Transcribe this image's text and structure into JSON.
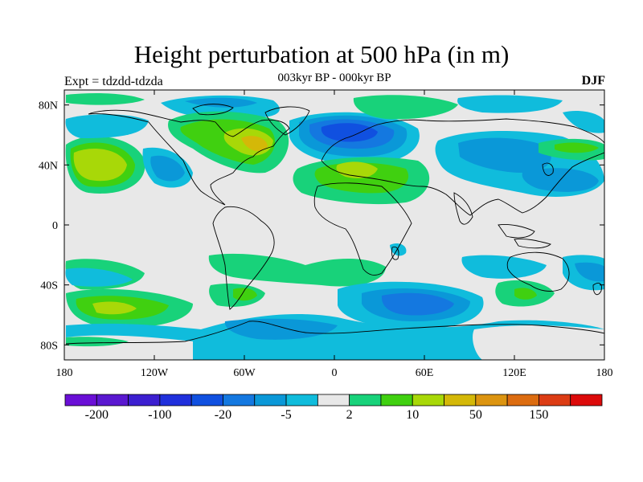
{
  "title": "Height perturbation at 500 hPa (in m)",
  "subtitle": "003kyr BP - 000kyr BP",
  "left_label": "Expt = tdzdd-tdzda",
  "right_label": "DJF",
  "map": {
    "lon_range": [
      -180,
      180
    ],
    "lat_range": [
      -90,
      90
    ],
    "background_color": "#e8e8e8",
    "x_ticks": [
      {
        "lon": -180,
        "label": "180"
      },
      {
        "lon": -120,
        "label": "120W"
      },
      {
        "lon": -60,
        "label": "60W"
      },
      {
        "lon": 0,
        "label": "0"
      },
      {
        "lon": 60,
        "label": "60E"
      },
      {
        "lon": 120,
        "label": "120E"
      },
      {
        "lon": 180,
        "label": "180"
      }
    ],
    "y_ticks": [
      {
        "lat": 80,
        "label": "80N"
      },
      {
        "lat": 40,
        "label": "40N"
      },
      {
        "lat": 0,
        "label": "0"
      },
      {
        "lat": -40,
        "label": "40S"
      },
      {
        "lat": -80,
        "label": "80S"
      }
    ]
  },
  "colorbar": {
    "colors": [
      "#6a0fd6",
      "#5a18d0",
      "#3c1fd0",
      "#2030dc",
      "#1050e0",
      "#1478e0",
      "#0a98d8",
      "#10bcdc",
      "#e8e8e8",
      "#18d27a",
      "#40d010",
      "#a8d808",
      "#d4b808",
      "#dc9410",
      "#dc6c10",
      "#dc3c14",
      "#dc0a0a"
    ],
    "labels": [
      {
        "index": 1,
        "text": "-200"
      },
      {
        "index": 3,
        "text": "-100"
      },
      {
        "index": 5,
        "text": "-20"
      },
      {
        "index": 7,
        "text": "-5"
      },
      {
        "index": 9,
        "text": "2"
      },
      {
        "index": 11,
        "text": "10"
      },
      {
        "index": 13,
        "text": "50"
      },
      {
        "index": 15,
        "text": "150"
      }
    ]
  }
}
